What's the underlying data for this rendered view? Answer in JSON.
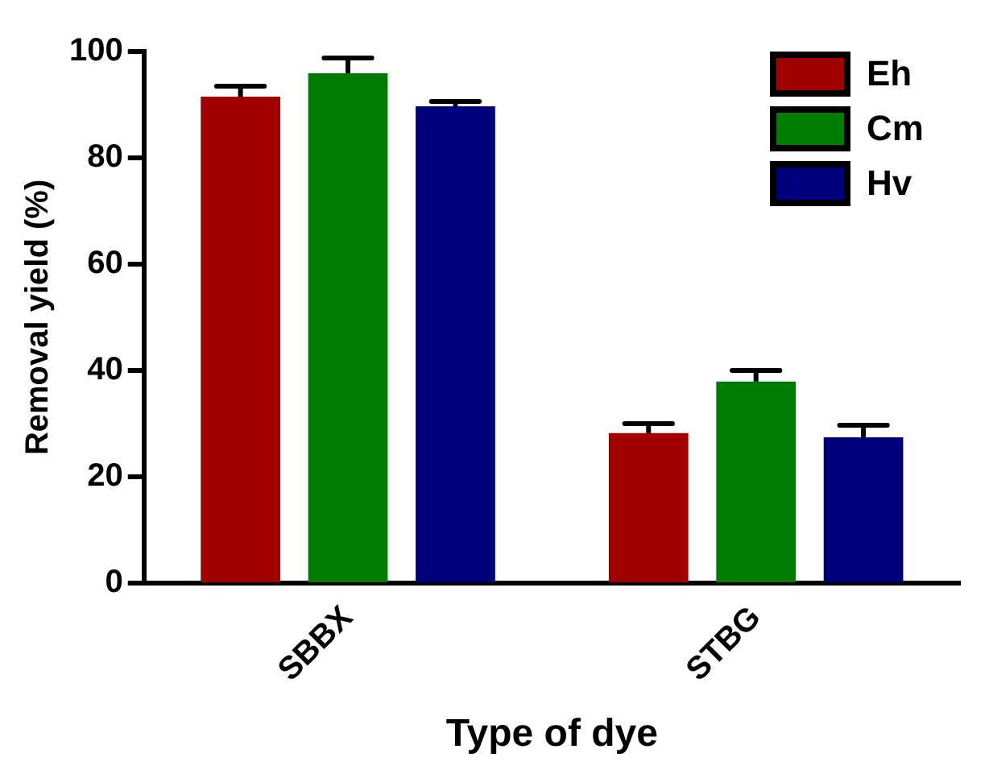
{
  "chart_data": {
    "type": "bar",
    "xlabel": "Type of dye",
    "ylabel": "Removal yield (%)",
    "categories": [
      "SBBX",
      "STBG"
    ],
    "series": [
      {
        "name": "Eh",
        "color": "#a00000",
        "values": [
          91.5,
          28.2
        ],
        "errors": [
          [
            91.5,
            93.5
          ],
          [
            28.2,
            30
          ]
        ]
      },
      {
        "name": "Cm",
        "color": "#007c00",
        "values": [
          95.9,
          37.9
        ],
        "errors": [
          [
            95.9,
            98.8
          ],
          [
            37.9,
            40
          ]
        ]
      },
      {
        "name": "Hv",
        "color": "#00007c",
        "values": [
          89.7,
          27.4
        ],
        "errors": [
          [
            89.7,
            90.6
          ],
          [
            27.4,
            29.7
          ]
        ]
      }
    ],
    "ylim": [
      0,
      100
    ],
    "yticks": [
      0,
      20,
      40,
      60,
      80,
      100
    ],
    "grid": false,
    "legend": "top right"
  }
}
